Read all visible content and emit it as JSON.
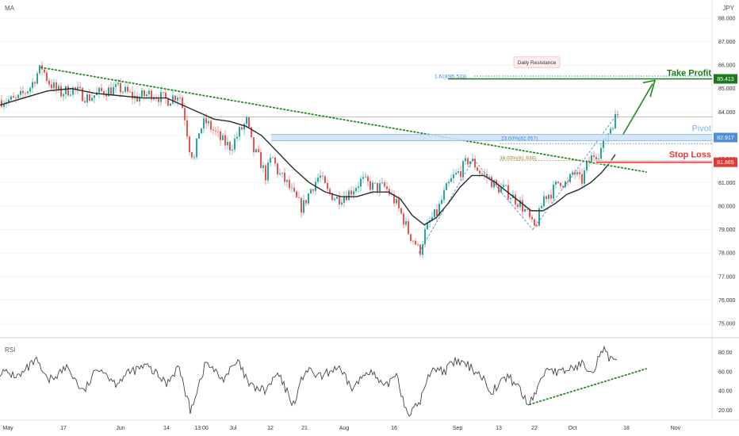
{
  "indicator_label": "MA",
  "currency_label": "JPY",
  "rsi_label": "RSI",
  "colors": {
    "candle_up": "#26a69a",
    "candle_down": "#ef5350",
    "ma_line": "#2b2b2b",
    "trend_dotted": "#1e8c1e",
    "take_profit": "#1b7a1b",
    "pivot": "#7fb0ea",
    "stop_loss": "#e53935",
    "fib_blue": "#3d7fd6",
    "fib_olive": "#9a8a2a",
    "arrow": "#1b8a1b",
    "rsi_line": "#444444"
  },
  "chart_data": [
    {
      "type": "candlestick",
      "panel": "price",
      "ylim": [
        74.6,
        88.5
      ],
      "y_ticks": [
        "88.000",
        "87.000",
        "86.000",
        "85.000",
        "84.000",
        "83.000",
        "82.000",
        "81.000",
        "80.000",
        "79.000",
        "78.000",
        "77.000",
        "76.000",
        "75.000"
      ],
      "x_ticks": [
        "May",
        "17",
        "Jun",
        "14",
        "13:00",
        "Jul",
        "12",
        "21",
        "Aug",
        "16",
        "Sep",
        "13",
        "22",
        "Oct",
        "18",
        "Nov"
      ],
      "price_path": [
        [
          0,
          84.5
        ],
        [
          20,
          84.5
        ],
        [
          38,
          85.1
        ],
        [
          45,
          85.6
        ],
        [
          52,
          85.9
        ],
        [
          60,
          85.3
        ],
        [
          75,
          84.8
        ],
        [
          90,
          85.0
        ],
        [
          110,
          84.6
        ],
        [
          130,
          84.9
        ],
        [
          150,
          85.0
        ],
        [
          170,
          84.6
        ],
        [
          190,
          84.8
        ],
        [
          210,
          84.5
        ],
        [
          225,
          84.8
        ],
        [
          232,
          83.8
        ],
        [
          238,
          82.5
        ],
        [
          244,
          82.0
        ],
        [
          250,
          83.2
        ],
        [
          258,
          83.6
        ],
        [
          266,
          83.3
        ],
        [
          278,
          82.8
        ],
        [
          290,
          82.5
        ],
        [
          300,
          83.1
        ],
        [
          310,
          83.6
        ],
        [
          318,
          82.4
        ],
        [
          326,
          82.0
        ],
        [
          334,
          81.3
        ],
        [
          342,
          82.1
        ],
        [
          350,
          81.4
        ],
        [
          360,
          81.0
        ],
        [
          370,
          80.4
        ],
        [
          380,
          79.9
        ],
        [
          392,
          80.8
        ],
        [
          402,
          81.3
        ],
        [
          412,
          80.6
        ],
        [
          425,
          80.3
        ],
        [
          440,
          80.6
        ],
        [
          455,
          81.1
        ],
        [
          470,
          80.8
        ],
        [
          485,
          80.8
        ],
        [
          497,
          80.2
        ],
        [
          507,
          79.5
        ],
        [
          515,
          78.8
        ],
        [
          522,
          78.5
        ],
        [
          528,
          78.0
        ],
        [
          534,
          78.8
        ],
        [
          542,
          79.4
        ],
        [
          550,
          79.7
        ],
        [
          560,
          80.6
        ],
        [
          570,
          81.2
        ],
        [
          580,
          81.5
        ],
        [
          590,
          82.0
        ],
        [
          597,
          81.8
        ],
        [
          605,
          81.4
        ],
        [
          615,
          81.2
        ],
        [
          625,
          80.8
        ],
        [
          635,
          80.7
        ],
        [
          645,
          80.4
        ],
        [
          655,
          80.1
        ],
        [
          665,
          79.6
        ],
        [
          672,
          79.0
        ],
        [
          678,
          79.5
        ],
        [
          685,
          80.4
        ],
        [
          695,
          80.6
        ],
        [
          705,
          81.1
        ],
        [
          715,
          80.9
        ],
        [
          722,
          81.5
        ],
        [
          732,
          81.0
        ],
        [
          740,
          81.8
        ],
        [
          748,
          82.2
        ],
        [
          755,
          82.3
        ],
        [
          762,
          82.8
        ],
        [
          768,
          83.3
        ],
        [
          774,
          83.7
        ],
        [
          778,
          83.9
        ]
      ],
      "moving_average": [
        [
          0,
          84.3
        ],
        [
          30,
          84.6
        ],
        [
          60,
          84.9
        ],
        [
          90,
          85.0
        ],
        [
          120,
          84.8
        ],
        [
          150,
          84.7
        ],
        [
          180,
          84.6
        ],
        [
          210,
          84.6
        ],
        [
          230,
          84.3
        ],
        [
          250,
          84.0
        ],
        [
          270,
          83.7
        ],
        [
          290,
          83.6
        ],
        [
          310,
          83.4
        ],
        [
          330,
          83.0
        ],
        [
          350,
          82.3
        ],
        [
          370,
          81.6
        ],
        [
          390,
          81.0
        ],
        [
          410,
          80.6
        ],
        [
          430,
          80.4
        ],
        [
          450,
          80.4
        ],
        [
          470,
          80.6
        ],
        [
          490,
          80.6
        ],
        [
          505,
          80.3
        ],
        [
          520,
          79.6
        ],
        [
          535,
          79.2
        ],
        [
          550,
          79.5
        ],
        [
          565,
          80.1
        ],
        [
          580,
          80.8
        ],
        [
          595,
          81.3
        ],
        [
          610,
          81.3
        ],
        [
          625,
          81.0
        ],
        [
          640,
          80.6
        ],
        [
          655,
          80.2
        ],
        [
          670,
          79.8
        ],
        [
          685,
          79.8
        ],
        [
          700,
          80.1
        ],
        [
          715,
          80.5
        ],
        [
          730,
          80.7
        ],
        [
          745,
          81.0
        ],
        [
          758,
          81.4
        ],
        [
          768,
          81.8
        ],
        [
          776,
          82.2
        ]
      ],
      "levels": [
        {
          "name": "Take Profit",
          "value": 85.413,
          "label": "85.413"
        },
        {
          "name": "Pivot",
          "value": 82.917,
          "label": "82.917"
        },
        {
          "name": "Stop Loss",
          "value": 81.865,
          "label": "81.865"
        }
      ],
      "fib_levels": [
        {
          "label": "1.618(85.533)",
          "value": 85.533
        },
        {
          "label": "23.60%(82.657)",
          "value": 82.657
        },
        {
          "label": "38.00%(81.938)",
          "value": 81.938
        }
      ],
      "annotations": [
        "Daily Resistance"
      ],
      "current_price_line": 83.8
    },
    {
      "type": "line",
      "panel": "rsi",
      "title": "RSI",
      "ylim": [
        13,
        87
      ],
      "y_ticks": [
        "80.00",
        "60.00",
        "40.00",
        "20.00"
      ],
      "values_path": [
        [
          0,
          60
        ],
        [
          25,
          55
        ],
        [
          45,
          72
        ],
        [
          60,
          50
        ],
        [
          85,
          65
        ],
        [
          105,
          38
        ],
        [
          125,
          66
        ],
        [
          145,
          48
        ],
        [
          165,
          60
        ],
        [
          185,
          66
        ],
        [
          210,
          48
        ],
        [
          225,
          66
        ],
        [
          240,
          20
        ],
        [
          260,
          70
        ],
        [
          280,
          52
        ],
        [
          300,
          70
        ],
        [
          315,
          45
        ],
        [
          335,
          40
        ],
        [
          350,
          58
        ],
        [
          370,
          26
        ],
        [
          385,
          62
        ],
        [
          405,
          54
        ],
        [
          425,
          65
        ],
        [
          445,
          42
        ],
        [
          465,
          63
        ],
        [
          485,
          42
        ],
        [
          500,
          60
        ],
        [
          510,
          25
        ],
        [
          518,
          16
        ],
        [
          530,
          30
        ],
        [
          545,
          65
        ],
        [
          560,
          60
        ],
        [
          575,
          71
        ],
        [
          590,
          66
        ],
        [
          605,
          58
        ],
        [
          620,
          40
        ],
        [
          640,
          55
        ],
        [
          655,
          44
        ],
        [
          665,
          25
        ],
        [
          675,
          38
        ],
        [
          690,
          65
        ],
        [
          705,
          58
        ],
        [
          722,
          64
        ],
        [
          735,
          68
        ],
        [
          748,
          62
        ],
        [
          760,
          84
        ],
        [
          770,
          72
        ],
        [
          778,
          68
        ]
      ]
    }
  ]
}
